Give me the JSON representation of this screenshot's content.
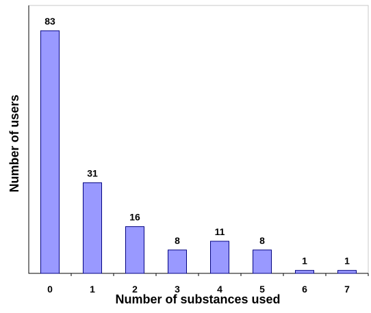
{
  "chart_data": {
    "type": "bar",
    "categories": [
      "0",
      "1",
      "2",
      "3",
      "4",
      "5",
      "6",
      "7"
    ],
    "values": [
      83,
      31,
      16,
      8,
      11,
      8,
      1,
      1
    ],
    "data_labels": [
      "83",
      "31",
      "16",
      "8",
      "11",
      "8",
      "1",
      "1"
    ],
    "title": "",
    "xlabel": "Number of substances used",
    "ylabel": "Number of users",
    "ylim": [
      0,
      83
    ],
    "grid": false,
    "legend": "none",
    "colors": {
      "bar_fill": "#9999ff",
      "bar_stroke": "#000080",
      "axis": "#000000",
      "text": "#000000",
      "background": "#ffffff"
    }
  }
}
